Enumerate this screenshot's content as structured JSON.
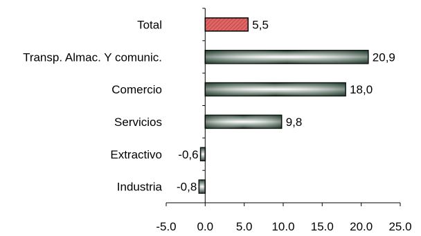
{
  "chart_data": {
    "type": "bar",
    "orientation": "horizontal",
    "categories": [
      "Total",
      "Transp. Almac. Y comunic.",
      "Comercio",
      "Servicios",
      "Extractivo",
      "Industria"
    ],
    "values": [
      5.5,
      20.9,
      18.0,
      9.8,
      -0.6,
      -0.8
    ],
    "value_labels": [
      "5,5",
      "20,9",
      "18,0",
      "9,8",
      "-0,6",
      "-0,8"
    ],
    "xlim": [
      -5.0,
      25.0
    ],
    "xticks": [
      -5.0,
      0.0,
      5.0,
      10.0,
      15.0,
      20.0,
      25.0
    ],
    "xtick_labels": [
      "-5.0",
      "0.0",
      "5.0",
      "10.0",
      "15.0",
      "20.0",
      "25.0"
    ],
    "title": "",
    "xlabel": "",
    "ylabel": "",
    "grid": false,
    "colors": {
      "highlight_bar": "#e06565",
      "bar_dark": "#1f3a2a",
      "bar_light": "#ffffff",
      "axis": "#000000"
    }
  }
}
